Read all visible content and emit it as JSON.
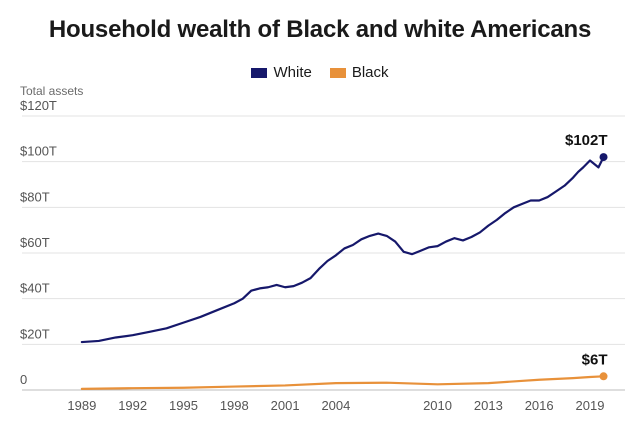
{
  "chart_data": {
    "type": "line",
    "title": "Household wealth of Black and white Americans",
    "ylabel": "Total assets",
    "xlabel": "",
    "x_ticks": [
      "1989",
      "1992",
      "1995",
      "1998",
      "2001",
      "2004",
      "2010",
      "2013",
      "2016",
      "2019"
    ],
    "y_ticks": [
      "0",
      "$20T",
      "$40T",
      "$60T",
      "$80T",
      "$100T",
      "$120T"
    ],
    "ylim": [
      0,
      120
    ],
    "xlim": [
      1988.3,
      2020.3
    ],
    "grid": true,
    "legend_position": "top-center",
    "colors": {
      "White": "#16186b",
      "Black": "#e8913a"
    },
    "series": [
      {
        "name": "White",
        "x": [
          1989,
          1990,
          1991,
          1992,
          1993,
          1994,
          1995,
          1996,
          1997,
          1998,
          1998.5,
          1999,
          1999.5,
          2000,
          2000.5,
          2001,
          2001.5,
          2002,
          2002.5,
          2003,
          2003.5,
          2004,
          2004.5,
          2005,
          2005.5,
          2006,
          2006.5,
          2007,
          2007.5,
          2008,
          2008.5,
          2009,
          2009.5,
          2010,
          2010.5,
          2011,
          2011.5,
          2012,
          2012.5,
          2013,
          2013.5,
          2014,
          2014.5,
          2015,
          2015.5,
          2016,
          2016.5,
          2017,
          2017.5,
          2018,
          2018.3,
          2018.6,
          2019,
          2019.5,
          2019.8
        ],
        "values": [
          21,
          21.5,
          23,
          24,
          25.5,
          27,
          29.5,
          32,
          35,
          38,
          40,
          43.5,
          44.5,
          45,
          46,
          45,
          45.5,
          47,
          49,
          53,
          56.5,
          59,
          62,
          63.5,
          66,
          67.5,
          68.5,
          67.5,
          65,
          60.5,
          59.5,
          61,
          62.5,
          63,
          65,
          66.5,
          65.5,
          67,
          69,
          72,
          74.5,
          77.5,
          80,
          81.5,
          83,
          83,
          84.5,
          87,
          89.5,
          93,
          95.5,
          97.5,
          100.5,
          97.5,
          102
        ]
      },
      {
        "name": "Black",
        "x": [
          1989,
          1992,
          1995,
          1998,
          2001,
          2004,
          2007,
          2010,
          2013,
          2016,
          2018,
          2019,
          2019.8
        ],
        "values": [
          0.5,
          0.8,
          1.0,
          1.5,
          2.0,
          3.0,
          3.2,
          2.5,
          3.0,
          4.5,
          5.2,
          5.7,
          6
        ]
      }
    ],
    "annotations": [
      {
        "series": "White",
        "text": "$102T"
      },
      {
        "series": "Black",
        "text": "$6T"
      }
    ]
  }
}
